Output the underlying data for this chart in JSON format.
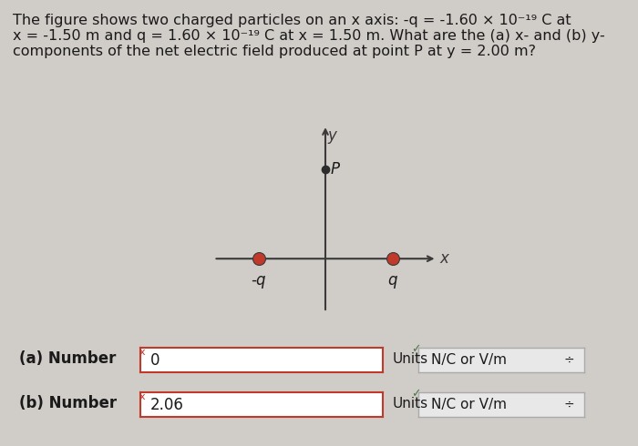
{
  "background_color": "#d0ccc8",
  "text_color": "#1a1a1a",
  "title_text": "The figure shows two charged particles on an x axis: -q = -1.60 × 10⁻¹⁹ C at\nx = -1.50 m and q = 1.60 × 10⁻¹⁹ C at x = 1.50 m. What are the (a) x- and (b) y-\ncomponents of the net electric field produced at point P at y = 2.00 m?",
  "plot_bg": "#d0ccc8",
  "axis_color": "#3a3a3a",
  "charge_color_neg": "#c0392b",
  "charge_color_pos": "#c0392b",
  "point_P_color": "#2c2c2c",
  "neg_charge_x": -1.5,
  "neg_charge_y": 0.0,
  "pos_charge_x": 1.5,
  "pos_charge_y": 0.0,
  "point_P_x": 0.0,
  "point_P_y": 2.0,
  "xlim": [
    -2.5,
    2.5
  ],
  "ylim": [
    -1.2,
    3.0
  ],
  "label_neg": "-q",
  "label_pos": "q",
  "label_P": "P",
  "label_x": "x",
  "label_y": "y",
  "answer_a_label": "(a) Number",
  "answer_a_value": "0",
  "answer_b_label": "(b) Number",
  "answer_b_value": "2.06",
  "units_label": "Units",
  "units_value": "N/C or V/m",
  "input_box_color": "#ffffff",
  "input_box_border": "#c0392b",
  "units_box_color": "#e8e8e8",
  "check_color": "#4a7a4a",
  "font_size_title": 11.5,
  "font_size_labels": 11,
  "font_size_axis": 12,
  "charge_size": 10,
  "point_size": 8
}
